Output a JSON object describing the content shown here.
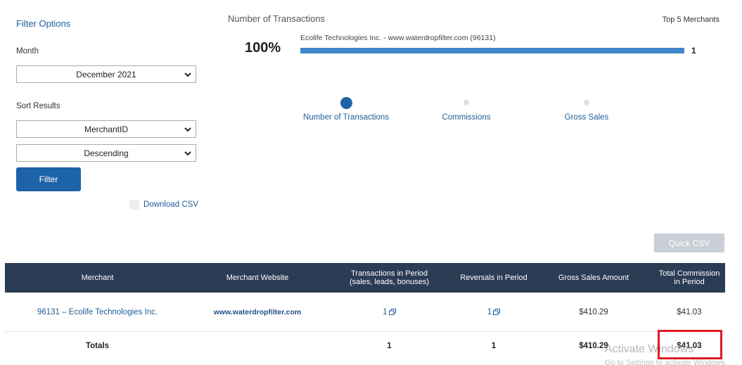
{
  "filters": {
    "title": "Filter Options",
    "month_label": "Month",
    "month_value": "December 2021",
    "sort_label": "Sort Results",
    "sort_field_value": "MerchantID",
    "sort_order_value": "Descending",
    "filter_button": "Filter",
    "download_csv": "Download CSV"
  },
  "chart": {
    "title": "Number of Transactions",
    "top_label": "Top 5 Merchants",
    "percent": "100%",
    "metrics": [
      "Number of Transactions",
      "Commissions",
      "Gross Sales"
    ],
    "active_metric": "Number of Transactions"
  },
  "chart_data": {
    "type": "bar",
    "categories": [
      "Ecolife Technologies Inc. - www.waterdropfilter.com (96131)"
    ],
    "values": [
      1
    ],
    "value_labels": [
      "1"
    ],
    "title": "Number of Transactions",
    "xlim": [
      0,
      1
    ]
  },
  "quick_csv": "Quick CSV",
  "table": {
    "headers": [
      "Merchant",
      "Merchant Website",
      "Transactions in Period (sales, leads, bonuses)",
      "Reversals in Period",
      "Gross Sales Amount",
      "Total Commission in Period"
    ],
    "header_lines": {
      "transactions": [
        "Transactions in Period",
        "(sales, leads, bonuses)"
      ],
      "commission": [
        "Total Commission",
        "in Period"
      ]
    },
    "rows": [
      {
        "merchant": "96131 – Ecolife Technologies Inc.",
        "website": "www.waterdropfilter.com",
        "transactions": "1",
        "reversals": "1",
        "gross_sales": "$410.29",
        "commission": "$41.03"
      }
    ],
    "totals": {
      "label": "Totals",
      "transactions": "1",
      "reversals": "1",
      "gross_sales": "$410.29",
      "commission": "$41.03"
    }
  },
  "watermark": {
    "line1": "Activate Windows",
    "line2": "Go to Settings to activate Windows."
  },
  "colors": {
    "accent": "#1d63a9",
    "header": "#2b3c55",
    "highlight": "#e01b24"
  },
  "icons": [
    "chevron-down-icon",
    "external-link-icon"
  ]
}
